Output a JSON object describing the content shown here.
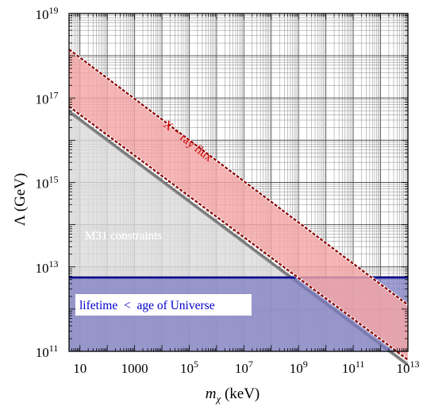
{
  "chart_data": {
    "type": "area",
    "title": "",
    "xlabel_symbol": "m",
    "xlabel_sub": "χ",
    "xlabel_unit": " (keV)",
    "ylabel": "Λ (GeV)",
    "x_scale": "log10",
    "y_scale": "log10",
    "xlim": [
      0.6,
      13
    ],
    "ylim": [
      11,
      19
    ],
    "x_ticks": [
      {
        "exp": 1,
        "base": "10",
        "sup": ""
      },
      {
        "exp": 3,
        "base": "1000",
        "sup": ""
      },
      {
        "exp": 5,
        "base": "10",
        "sup": "5"
      },
      {
        "exp": 7,
        "base": "10",
        "sup": "7"
      },
      {
        "exp": 9,
        "base": "10",
        "sup": "9"
      },
      {
        "exp": 11,
        "base": "10",
        "sup": "11"
      },
      {
        "exp": 13,
        "base": "10",
        "sup": "13"
      }
    ],
    "y_ticks": [
      {
        "exp": 11,
        "base": "10",
        "sup": "11"
      },
      {
        "exp": 13,
        "base": "10",
        "sup": "13"
      },
      {
        "exp": 15,
        "base": "10",
        "sup": "15"
      },
      {
        "exp": 17,
        "base": "10",
        "sup": "17"
      },
      {
        "exp": 19,
        "base": "10",
        "sup": "19"
      }
    ],
    "grid": true,
    "regions": [
      {
        "label": "M31 constraints",
        "kind": "below_line",
        "line_log": [
          [
            0.6,
            16.7
          ],
          [
            13,
            10.7
          ]
        ],
        "color": "#dcdcdc",
        "edge_color": "#666666"
      },
      {
        "label": "X − ray flux",
        "kind": "band",
        "upper_log": [
          [
            0.6,
            18.15
          ],
          [
            13,
            12.1
          ]
        ],
        "lower_log": [
          [
            0.6,
            16.8
          ],
          [
            13,
            10.8
          ]
        ],
        "color": "#f5a6a6",
        "edge_color": "#8b0000"
      },
      {
        "label": "lifetime  <  age of Universe",
        "kind": "below_hline",
        "y_log": 12.75,
        "color": "#7a7ac2",
        "edge_color": "#00008b"
      }
    ],
    "annotations": {
      "m31": "M31 constraints",
      "xray": "X − ray flux",
      "lifetime": "lifetime  <  age of Universe"
    }
  }
}
